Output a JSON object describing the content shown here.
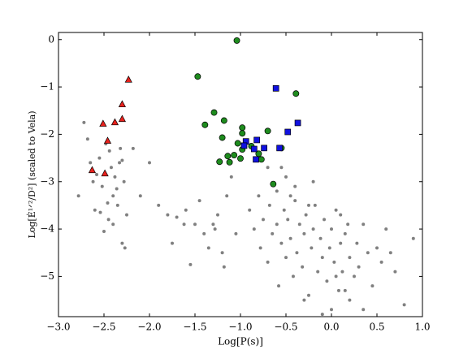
{
  "chart_data": {
    "type": "scatter",
    "x_label": "Log[P(s)]",
    "y_label": "Log[Ė¹ᐟ²/D²]   (scaled to Vela)",
    "xlim": [
      -3.0,
      1.0
    ],
    "ylim": [
      -5.85,
      0.15
    ],
    "xticks": [
      {
        "value": -3.0,
        "label": "−3.0"
      },
      {
        "value": -2.5,
        "label": "−2.5"
      },
      {
        "value": -2.0,
        "label": "−2.0"
      },
      {
        "value": -1.5,
        "label": "−1.5"
      },
      {
        "value": -1.0,
        "label": "−1.0"
      },
      {
        "value": -0.5,
        "label": "−0.5"
      },
      {
        "value": 0,
        "label": "0.0"
      },
      {
        "value": 0.5,
        "label": "0.5"
      },
      {
        "value": 1,
        "label": "1.0"
      }
    ],
    "yticks": [
      0,
      {
        "value": -1,
        "label": "−1"
      },
      {
        "value": -2,
        "label": "−2"
      },
      {
        "value": -3,
        "label": "−3"
      },
      {
        "value": -4,
        "label": "−4"
      },
      {
        "value": -5,
        "label": "−5"
      }
    ],
    "grid": false,
    "series": [
      {
        "color": "#808080",
        "marker": "dot",
        "x": [
          -2.78,
          -2.72,
          -2.65,
          -2.6,
          -2.55,
          -2.52,
          -2.48,
          -2.45,
          -2.42,
          -2.4,
          -2.38,
          -2.35,
          -2.33,
          -2.3,
          -2.28,
          -2.25,
          -2.62,
          -2.5,
          -2.44,
          -2.36,
          -2.3,
          -2.27,
          -2.58,
          -2.46,
          -2.4,
          -2.32,
          -2.68,
          -2.54,
          -2.0,
          -1.9,
          -1.8,
          -1.75,
          -1.6,
          -1.55,
          -1.5,
          -1.45,
          -1.4,
          -1.3,
          -1.25,
          -1.2,
          -1.15,
          -1.1,
          -1.05,
          -1.7,
          -1.35,
          -1.62,
          -1.28,
          -1.18,
          -2.1,
          -2.18,
          -0.9,
          -0.85,
          -0.8,
          -0.78,
          -0.75,
          -0.7,
          -0.68,
          -0.65,
          -0.6,
          -0.58,
          -0.55,
          -0.52,
          -0.5,
          -0.48,
          -0.45,
          -0.42,
          -0.4,
          -0.38,
          -0.35,
          -0.32,
          -0.3,
          -0.28,
          -0.25,
          -0.22,
          -0.2,
          -0.18,
          -0.15,
          -0.12,
          -0.1,
          -0.08,
          -0.05,
          -0.02,
          0.0,
          0.03,
          0.05,
          0.08,
          0.1,
          0.12,
          0.15,
          0.18,
          0.2,
          0.25,
          0.28,
          0.3,
          0.35,
          0.4,
          0.45,
          0.5,
          0.55,
          0.6,
          0.7,
          0.8,
          0.9,
          -0.6,
          -0.4,
          -0.2,
          0.0,
          0.1,
          -0.3,
          -0.5,
          -0.1,
          0.2,
          -0.7,
          -0.45,
          0.35,
          0.05,
          -0.25,
          0.15,
          -0.55,
          0.65
        ],
        "values": [
          -3.3,
          -1.75,
          -2.6,
          -3.6,
          -2.5,
          -3.1,
          -2.2,
          -3.8,
          -2.7,
          -3.3,
          -2.9,
          -3.5,
          -2.6,
          -4.3,
          -3.0,
          -3.7,
          -3.0,
          -4.05,
          -2.35,
          -3.15,
          -2.55,
          -4.4,
          -2.85,
          -3.45,
          -3.9,
          -2.3,
          -2.1,
          -3.65,
          -2.6,
          -3.5,
          -3.7,
          -4.3,
          -3.6,
          -4.75,
          -3.9,
          -3.4,
          -4.1,
          -3.9,
          -3.7,
          -4.5,
          -3.3,
          -2.9,
          -4.1,
          -3.75,
          -4.4,
          -3.9,
          -4.0,
          -4.8,
          -3.3,
          -2.3,
          -3.6,
          -4.0,
          -3.3,
          -4.4,
          -3.8,
          -4.7,
          -3.5,
          -4.1,
          -3.9,
          -5.2,
          -4.3,
          -3.6,
          -4.6,
          -3.8,
          -4.2,
          -5.0,
          -3.4,
          -4.5,
          -3.9,
          -4.8,
          -4.1,
          -3.7,
          -5.4,
          -4.4,
          -4.0,
          -3.5,
          -4.9,
          -4.2,
          -4.6,
          -3.8,
          -5.1,
          -4.4,
          -4.0,
          -4.7,
          -3.6,
          -5.3,
          -4.3,
          -4.9,
          -4.1,
          -3.9,
          -4.6,
          -5.0,
          -4.3,
          -4.8,
          -3.9,
          -4.5,
          -5.2,
          -4.4,
          -4.7,
          -4.0,
          -4.9,
          -5.6,
          -4.2,
          -3.2,
          -3.1,
          -3.0,
          -5.7,
          -3.7,
          -5.5,
          -2.9,
          -5.8,
          -5.5,
          -2.7,
          -3.3,
          -5.7,
          -5.0,
          -3.5,
          -5.3,
          -2.7,
          -4.5
        ]
      },
      {
        "color": "#e8211c",
        "marker": "triangle",
        "x": [
          -2.23,
          -2.3,
          -2.3,
          -2.38,
          -2.51,
          -2.46,
          -2.63,
          -2.49
        ],
        "values": [
          -0.85,
          -1.37,
          -1.68,
          -1.75,
          -1.78,
          -2.14,
          -2.76,
          -2.83
        ]
      },
      {
        "color": "#1e8c1e",
        "marker": "circle",
        "x": [
          -1.04,
          -1.47,
          -1.29,
          -1.18,
          -1.39,
          -0.98,
          -0.98,
          -0.39,
          -0.7,
          -1.2,
          -1.03,
          -0.88,
          -0.8,
          -0.98,
          -1.07,
          -1.14,
          -1.23,
          -1.12,
          -1.0,
          -0.77,
          -0.55,
          -0.64
        ],
        "values": [
          -0.02,
          -0.78,
          -1.54,
          -1.71,
          -1.8,
          -1.86,
          -1.98,
          -1.14,
          -1.93,
          -2.07,
          -2.19,
          -2.25,
          -2.41,
          -2.32,
          -2.44,
          -2.46,
          -2.58,
          -2.59,
          -2.51,
          -2.53,
          -2.29,
          -3.05
        ]
      },
      {
        "color": "#1010e0",
        "marker": "square",
        "x": [
          -0.61,
          -0.37,
          -0.48,
          -0.94,
          -0.82,
          -0.96,
          -0.85,
          -0.74,
          -0.57,
          -0.83
        ],
        "values": [
          -1.03,
          -1.76,
          -1.95,
          -2.15,
          -2.12,
          -2.24,
          -2.31,
          -2.29,
          -2.29,
          -2.53
        ]
      }
    ]
  }
}
